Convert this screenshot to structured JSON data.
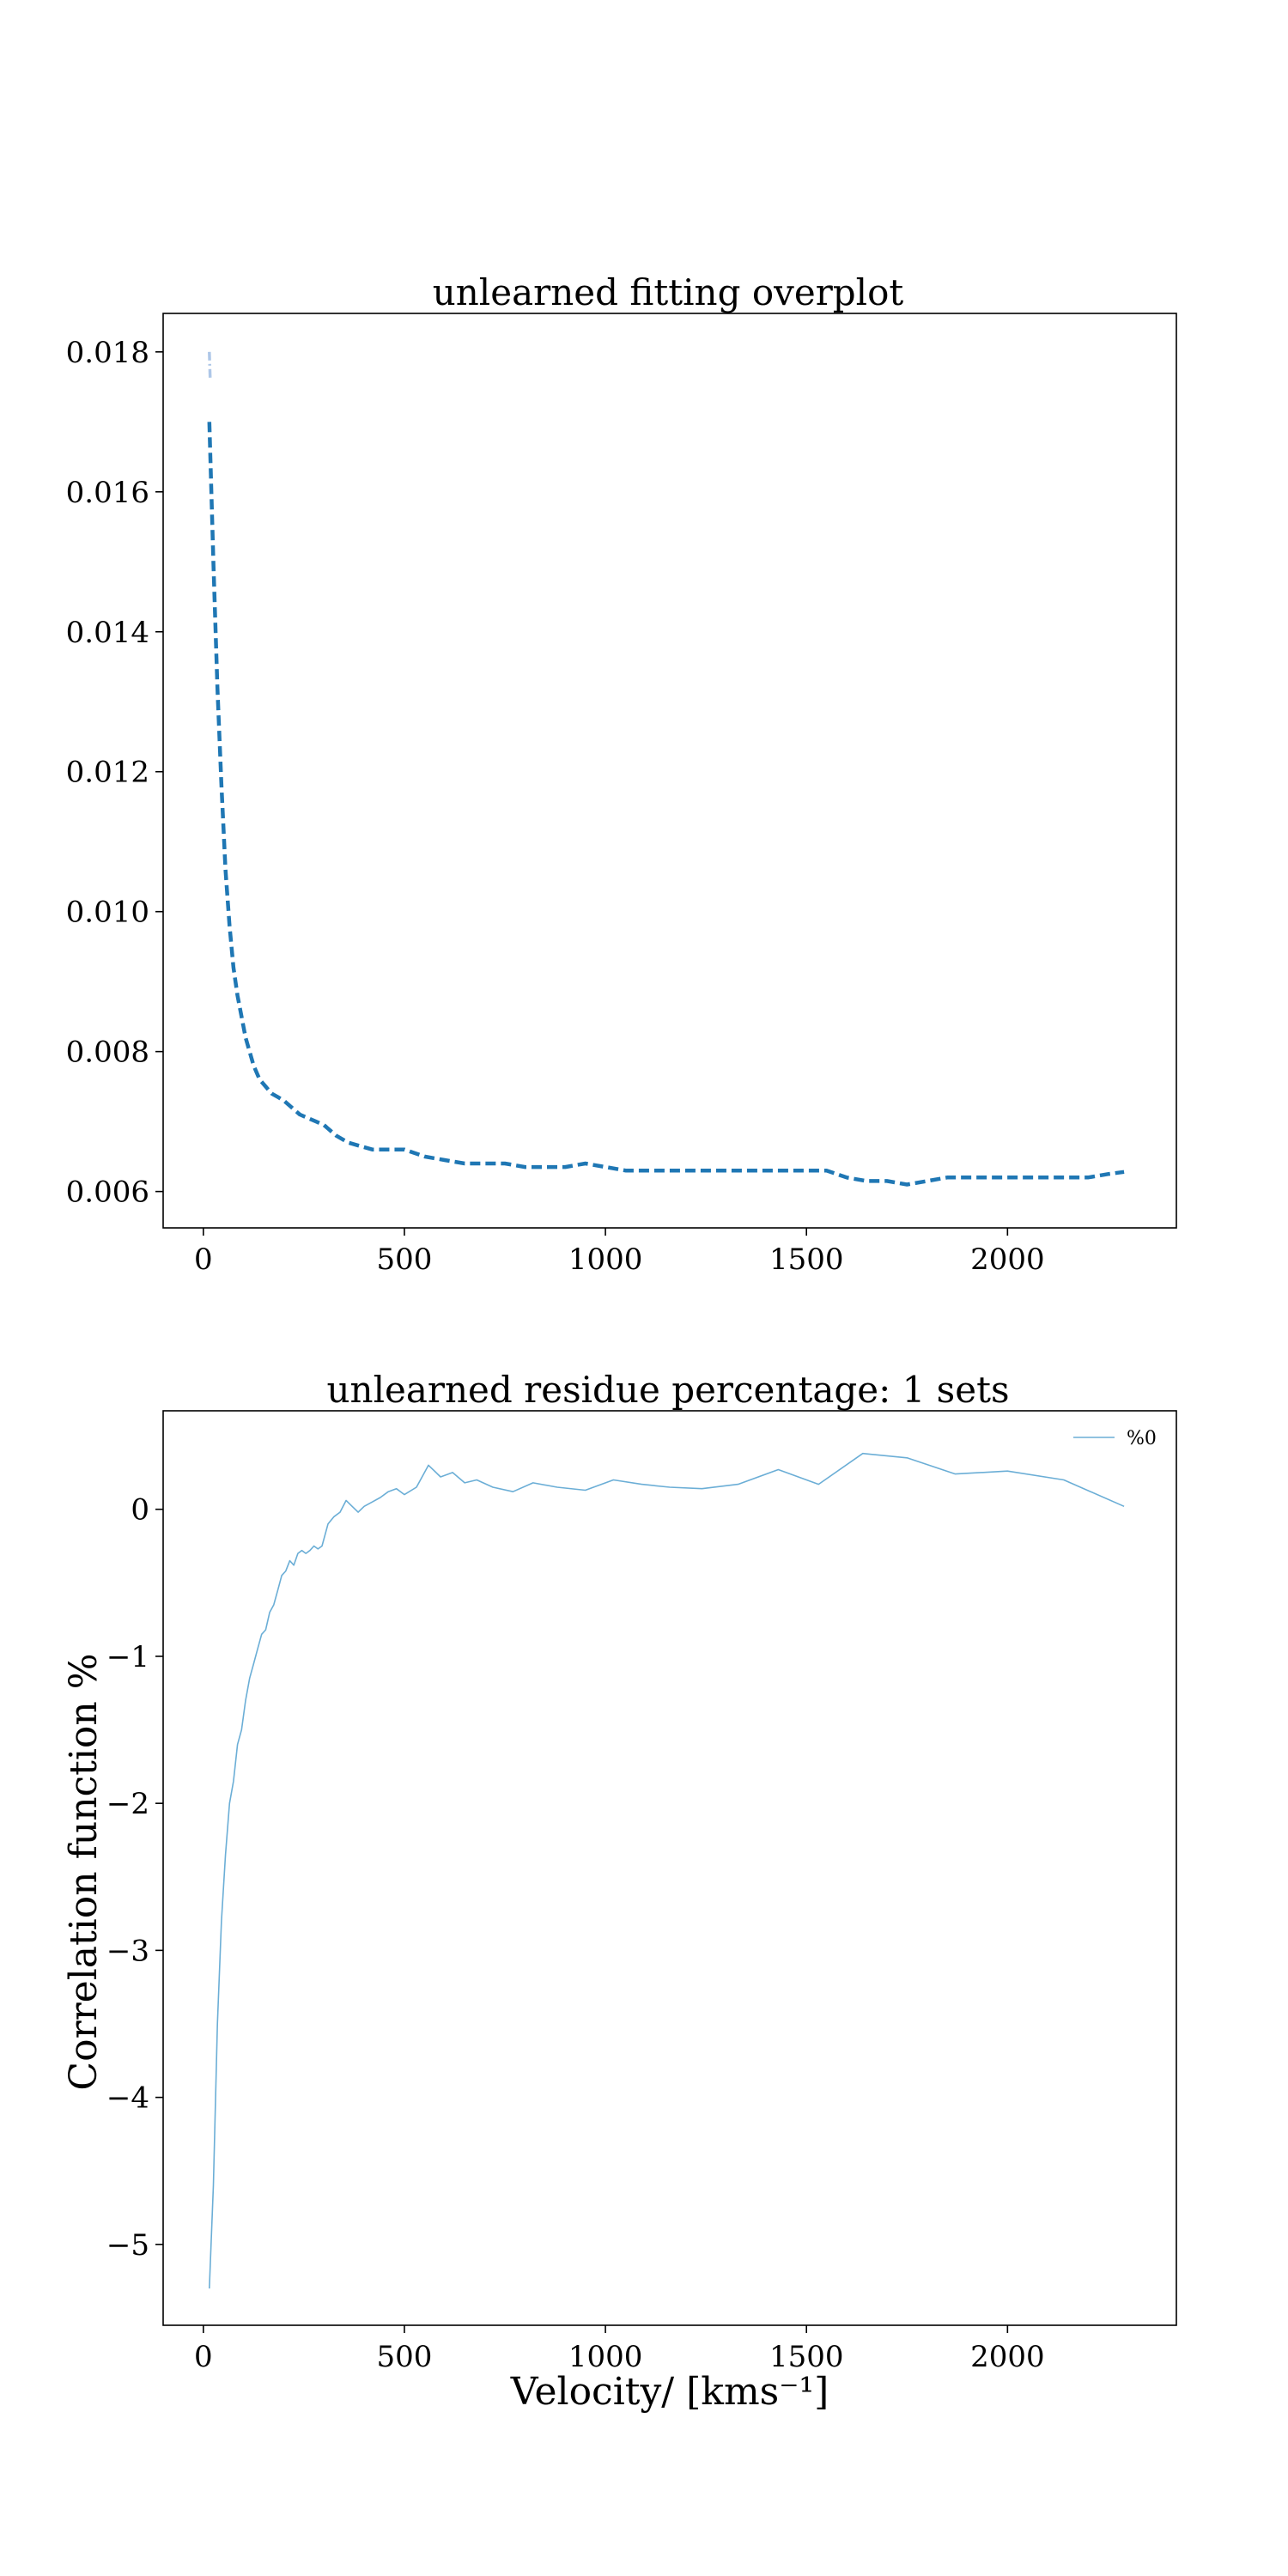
{
  "chart_data": [
    {
      "type": "line",
      "title": "unlearned fitting overplot",
      "xlabel": "",
      "ylabel": "",
      "xlim": [
        -100,
        2420
      ],
      "ylim": [
        0.00548,
        0.01855
      ],
      "xticks": [
        0,
        500,
        1000,
        1500,
        2000
      ],
      "xtick_labels": [
        "0",
        "500",
        "1000",
        "1500",
        "2000"
      ],
      "yticks": [
        0.006,
        0.008,
        0.01,
        0.012,
        0.014,
        0.016,
        0.018
      ],
      "ytick_labels": [
        "0.006",
        "0.008",
        "0.010",
        "0.012",
        "0.014",
        "0.016",
        "0.018"
      ],
      "grid": false,
      "series": [
        {
          "style": "dashdot",
          "color": "#aec7e8",
          "x": [
            15,
            17
          ],
          "y": [
            0.018,
            0.0176
          ]
        },
        {
          "style": "dashed",
          "color": "#1f77b4",
          "x": [
            15,
            25,
            35,
            45,
            55,
            65,
            75,
            85,
            95,
            105,
            115,
            125,
            140,
            155,
            170,
            185,
            200,
            220,
            240,
            260,
            280,
            300,
            330,
            360,
            390,
            420,
            450,
            500,
            550,
            600,
            650,
            700,
            750,
            800,
            850,
            900,
            950,
            1000,
            1050,
            1100,
            1150,
            1200,
            1250,
            1300,
            1350,
            1400,
            1450,
            1500,
            1550,
            1600,
            1650,
            1700,
            1750,
            1800,
            1850,
            1900,
            1950,
            2000,
            2050,
            2100,
            2150,
            2200,
            2250,
            2290
          ],
          "y": [
            0.017,
            0.015,
            0.0132,
            0.0118,
            0.0106,
            0.0098,
            0.0092,
            0.0088,
            0.0085,
            0.0082,
            0.008,
            0.0078,
            0.0076,
            0.0075,
            0.0074,
            0.00735,
            0.0073,
            0.0072,
            0.0071,
            0.00705,
            0.007,
            0.00695,
            0.0068,
            0.0067,
            0.00665,
            0.0066,
            0.0066,
            0.0066,
            0.0065,
            0.00645,
            0.0064,
            0.0064,
            0.0064,
            0.00635,
            0.00635,
            0.00635,
            0.0064,
            0.00635,
            0.0063,
            0.0063,
            0.0063,
            0.0063,
            0.0063,
            0.0063,
            0.0063,
            0.0063,
            0.0063,
            0.0063,
            0.0063,
            0.0062,
            0.00615,
            0.00615,
            0.0061,
            0.00615,
            0.0062,
            0.0062,
            0.0062,
            0.0062,
            0.0062,
            0.0062,
            0.0062,
            0.0062,
            0.00625,
            0.00628
          ]
        }
      ]
    },
    {
      "type": "line",
      "title": "unlearned residue percentage: 1 sets",
      "xlabel": "Velocity/ [kms⁻¹]",
      "ylabel": "Correlation function %",
      "xlim": [
        -100,
        2420
      ],
      "ylim": [
        -5.55,
        0.67
      ],
      "xticks": [
        0,
        500,
        1000,
        1500,
        2000
      ],
      "xtick_labels": [
        "0",
        "500",
        "1000",
        "1500",
        "2000"
      ],
      "yticks": [
        -5,
        -4,
        -3,
        -2,
        -1,
        0
      ],
      "ytick_labels": [
        "−5",
        "−4",
        "−3",
        "−2",
        "−1",
        "0"
      ],
      "legend_position": "top-right",
      "legend": [
        "%0"
      ],
      "grid": false,
      "series": [
        {
          "name": "%0",
          "color": "#6baed6",
          "x": [
            15,
            25,
            35,
            45,
            55,
            65,
            75,
            85,
            95,
            105,
            115,
            125,
            135,
            145,
            155,
            165,
            175,
            185,
            195,
            205,
            215,
            225,
            235,
            245,
            255,
            265,
            275,
            285,
            295,
            310,
            325,
            340,
            355,
            370,
            385,
            400,
            420,
            440,
            460,
            480,
            500,
            530,
            560,
            590,
            620,
            650,
            680,
            720,
            770,
            820,
            880,
            950,
            1020,
            1090,
            1160,
            1240,
            1330,
            1430,
            1530,
            1640,
            1750,
            1870,
            2000,
            2140,
            2290
          ],
          "y": [
            -5.3,
            -4.6,
            -3.5,
            -2.8,
            -2.35,
            -2.0,
            -1.85,
            -1.6,
            -1.5,
            -1.3,
            -1.15,
            -1.05,
            -0.95,
            -0.85,
            -0.82,
            -0.7,
            -0.65,
            -0.55,
            -0.45,
            -0.42,
            -0.35,
            -0.38,
            -0.3,
            -0.28,
            -0.3,
            -0.28,
            -0.25,
            -0.27,
            -0.25,
            -0.1,
            -0.05,
            -0.02,
            0.06,
            0.02,
            -0.02,
            0.02,
            0.05,
            0.08,
            0.12,
            0.14,
            0.1,
            0.15,
            0.3,
            0.22,
            0.25,
            0.18,
            0.2,
            0.15,
            0.12,
            0.18,
            0.15,
            0.13,
            0.2,
            0.17,
            0.15,
            0.14,
            0.17,
            0.27,
            0.17,
            0.38,
            0.35,
            0.24,
            0.26,
            0.2,
            0.02
          ]
        }
      ]
    }
  ]
}
